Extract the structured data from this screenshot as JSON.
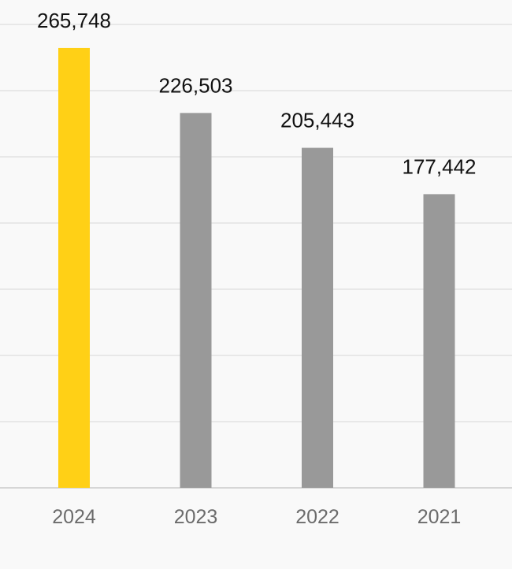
{
  "chart_data": {
    "type": "bar",
    "title": "",
    "xlabel": "",
    "ylabel": "",
    "categories": [
      "2024",
      "2023",
      "2022",
      "2021"
    ],
    "values": [
      265748,
      226503,
      205443,
      177442
    ],
    "data_labels": [
      "265,748",
      "226,503",
      "205,443",
      "177,442"
    ],
    "ylim": [
      0,
      300000
    ],
    "gridline_step": 40000,
    "grid": true,
    "legend": "none"
  },
  "colors": {
    "background": "#f9f9f9",
    "highlight_bar": "#ffd016",
    "default_bar": "#999999",
    "gridline": "#e3e3e3"
  }
}
